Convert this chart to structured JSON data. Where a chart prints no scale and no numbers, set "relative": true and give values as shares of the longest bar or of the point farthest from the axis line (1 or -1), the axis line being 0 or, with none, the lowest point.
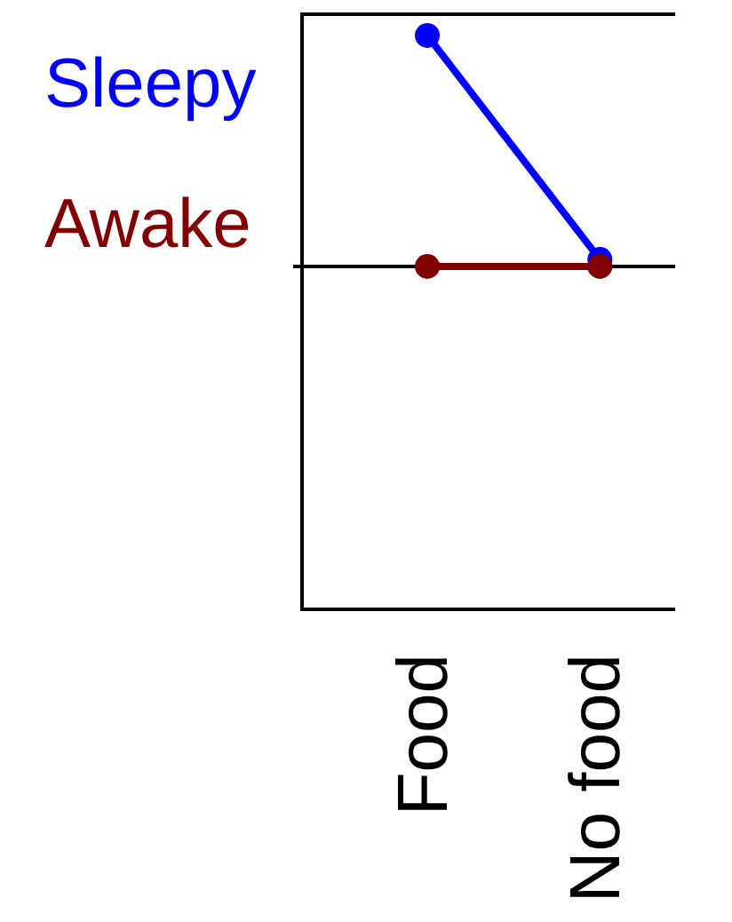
{
  "chart_data": {
    "type": "line",
    "relative": true,
    "categories": [
      "Food",
      "No food"
    ],
    "series": [
      {
        "name": "Sleepy",
        "color": "#0000ff",
        "values": [
          1,
          0.03
        ]
      },
      {
        "name": "Awake",
        "color": "#800000",
        "values": [
          0,
          0
        ]
      }
    ],
    "legend": "left",
    "marker": "circle",
    "line_style": "solid"
  }
}
